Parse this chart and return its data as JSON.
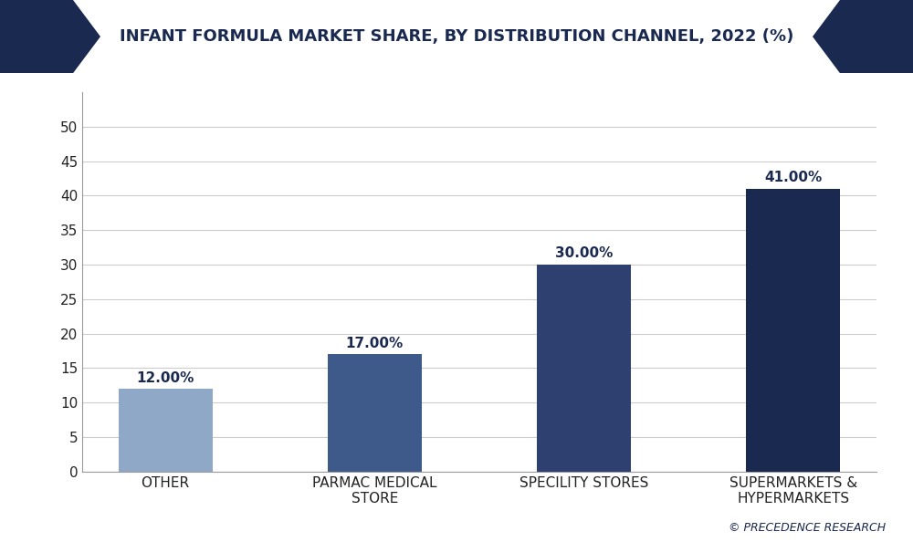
{
  "title": "INFANT FORMULA MARKET SHARE, BY DISTRIBUTION CHANNEL, 2022 (%)",
  "categories": [
    "OTHER",
    "PARMAC MEDICAL\nSTORE",
    "SPECILITY STORES",
    "SUPERMARKETS &\nHYPERMARKETS"
  ],
  "values": [
    12.0,
    17.0,
    30.0,
    41.0
  ],
  "labels": [
    "12.00%",
    "17.00%",
    "30.00%",
    "41.00%"
  ],
  "bar_colors": [
    "#8fa8c8",
    "#3d5a8a",
    "#2e4070",
    "#1a2950"
  ],
  "background_color": "#ffffff",
  "plot_bg_color": "#ffffff",
  "title_color": "#1a2950",
  "header_bg_color": "#1a2950",
  "ylim": [
    0,
    55
  ],
  "yticks": [
    0,
    5,
    10,
    15,
    20,
    25,
    30,
    35,
    40,
    45,
    50
  ],
  "grid_color": "#cccccc",
  "bar_width": 0.45,
  "label_fontsize": 11,
  "tick_fontsize": 11,
  "title_fontsize": 13,
  "watermark": "© PRECEDENCE RESEARCH",
  "header_color": "#1a2950"
}
